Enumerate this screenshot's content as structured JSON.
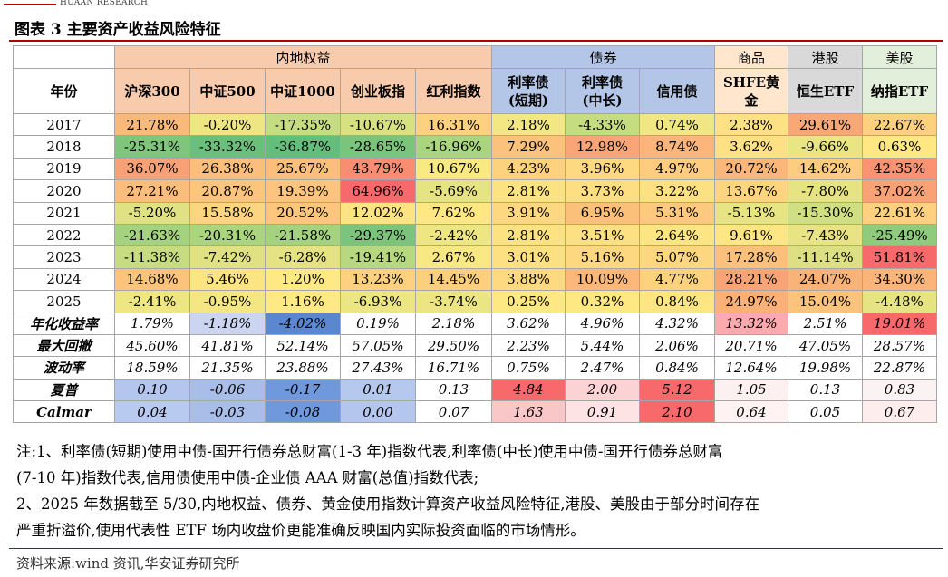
{
  "brand": "HUAAN RESEARCH",
  "title": "图表 3  主要资产收益风险特征",
  "groups": {
    "equity": "内地权益",
    "bonds": "债券",
    "commodity": "商品",
    "hk": "港股",
    "us": "美股"
  },
  "headers": {
    "year": "年份",
    "hs300": "沪深300",
    "zz500": "中证500",
    "zz1000": "中证1000",
    "cyb": "创业板指",
    "hl": "红利指数",
    "rate_short_1": "利率债",
    "rate_short_2": "(短期)",
    "rate_long_1": "利率债",
    "rate_long_2": "(中长)",
    "credit": "信用债",
    "gold_1": "SHFE黄",
    "gold_2": "金",
    "hstech": "恒生ETF",
    "ndx": "纳指ETF"
  },
  "years": [
    {
      "year": "2017",
      "v": [
        "21.78%",
        "-0.20%",
        "-17.35%",
        "-10.67%",
        "16.31%",
        "2.18%",
        "-4.33%",
        "0.74%",
        "2.38%",
        "29.61%",
        "22.67%"
      ]
    },
    {
      "year": "2018",
      "v": [
        "-25.31%",
        "-33.32%",
        "-36.87%",
        "-28.65%",
        "-16.96%",
        "7.29%",
        "12.98%",
        "8.74%",
        "3.62%",
        "-9.66%",
        "0.63%"
      ]
    },
    {
      "year": "2019",
      "v": [
        "36.07%",
        "26.38%",
        "25.67%",
        "43.79%",
        "10.67%",
        "4.23%",
        "3.96%",
        "4.97%",
        "20.72%",
        "14.62%",
        "42.35%"
      ]
    },
    {
      "year": "2020",
      "v": [
        "27.21%",
        "20.87%",
        "19.39%",
        "64.96%",
        "-5.69%",
        "2.81%",
        "3.73%",
        "3.22%",
        "13.67%",
        "-7.80%",
        "37.02%"
      ]
    },
    {
      "year": "2021",
      "v": [
        "-5.20%",
        "15.58%",
        "20.52%",
        "12.02%",
        "7.62%",
        "3.91%",
        "6.95%",
        "5.31%",
        "-5.13%",
        "-15.30%",
        "22.61%"
      ]
    },
    {
      "year": "2022",
      "v": [
        "-21.63%",
        "-20.31%",
        "-21.58%",
        "-29.37%",
        "-2.42%",
        "2.81%",
        "3.51%",
        "2.64%",
        "9.61%",
        "-7.43%",
        "-25.49%"
      ]
    },
    {
      "year": "2023",
      "v": [
        "-11.38%",
        "-7.42%",
        "-6.28%",
        "-19.41%",
        "2.67%",
        "3.01%",
        "5.16%",
        "5.07%",
        "17.28%",
        "-11.14%",
        "51.81%"
      ]
    },
    {
      "year": "2024",
      "v": [
        "14.68%",
        "5.46%",
        "1.20%",
        "13.23%",
        "14.45%",
        "3.88%",
        "10.09%",
        "4.77%",
        "28.21%",
        "24.07%",
        "34.30%"
      ]
    },
    {
      "year": "2025",
      "v": [
        "-2.41%",
        "-0.95%",
        "1.16%",
        "-6.93%",
        "-3.74%",
        "0.25%",
        "0.32%",
        "0.84%",
        "24.97%",
        "15.04%",
        "-4.48%"
      ]
    }
  ],
  "stats": [
    {
      "label": "年化收益率",
      "v": [
        "1.79%",
        "-1.18%",
        "-4.02%",
        "0.19%",
        "2.18%",
        "3.62%",
        "4.96%",
        "4.32%",
        "13.32%",
        "2.51%",
        "19.01%"
      ]
    },
    {
      "label": "最大回撤",
      "v": [
        "45.60%",
        "41.81%",
        "52.14%",
        "57.05%",
        "29.50%",
        "2.23%",
        "5.44%",
        "2.06%",
        "20.71%",
        "47.05%",
        "28.57%"
      ]
    },
    {
      "label": "波动率",
      "v": [
        "18.59%",
        "21.35%",
        "23.88%",
        "27.43%",
        "16.71%",
        "0.75%",
        "2.47%",
        "0.84%",
        "12.64%",
        "19.98%",
        "22.87%"
      ]
    },
    {
      "label": "夏普",
      "v": [
        "0.10",
        "-0.06",
        "-0.17",
        "0.01",
        "0.13",
        "4.84",
        "2.00",
        "5.12",
        "1.05",
        "0.13",
        "0.83"
      ]
    },
    {
      "label": "Calmar",
      "v": [
        "0.04",
        "-0.03",
        "-0.08",
        "0.00",
        "0.07",
        "1.63",
        "0.91",
        "2.10",
        "0.64",
        "0.05",
        "0.67"
      ]
    }
  ],
  "year_colors": [
    [
      "#f9b97a",
      "#eee683",
      "#c5dc80",
      "#d6e182",
      "#fdd17f",
      "#f3e783",
      "#c6dc81",
      "#f0e683",
      "#fee182",
      "#f8a877",
      "#fdd07e"
    ],
    [
      "#7fc57b",
      "#6cbf7b",
      "#63be7b",
      "#7bc47b",
      "#abd47e",
      "#fbc27c",
      "#f9a577",
      "#fbb479",
      "#fee182",
      "#eae583",
      "#ffe884"
    ],
    [
      "#f9a176",
      "#fbbe7c",
      "#fbbe7b",
      "#f98d71",
      "#f9e983",
      "#fdd27f",
      "#fdd981",
      "#fdcc7e",
      "#fbb779",
      "#fdcc7e",
      "#f99372"
    ],
    [
      "#fbbd7b",
      "#fcc57d",
      "#fcc47d",
      "#f8696b",
      "#e5e382",
      "#fde282",
      "#fdde82",
      "#fde082",
      "#fed57f",
      "#e6e383",
      "#f9a276"
    ],
    [
      "#dfe183",
      "#fdd580",
      "#fdc67d",
      "#fee383",
      "#ffe884",
      "#fed880",
      "#fbc17b",
      "#fcc97e",
      "#e6e483",
      "#cfdf82",
      "#fdd17f"
    ],
    [
      "#a4d27e",
      "#abd47e",
      "#a4d27e",
      "#7cc47b",
      "#eee683",
      "#fde282",
      "#fde082",
      "#fee583",
      "#fee683",
      "#e9e483",
      "#8fcb7d"
    ],
    [
      "#c7dc81",
      "#dfe183",
      "#e4e283",
      "#b7d880",
      "#f8e883",
      "#fde082",
      "#fdd880",
      "#fdd77f",
      "#fbc07c",
      "#dce083",
      "#f8696b"
    ],
    [
      "#fcc37d",
      "#fde482",
      "#ffe984",
      "#fdd17f",
      "#fccf7f",
      "#fdda81",
      "#fbb87a",
      "#fdd27f",
      "#f9a476",
      "#f9b379",
      "#fbb479"
    ],
    [
      "#eee683",
      "#f4e783",
      "#ffe984",
      "#ebe583",
      "#ece583",
      "#fee884",
      "#fee884",
      "#fee583",
      "#fbb077",
      "#fcc37d",
      "#e6e383"
    ]
  ],
  "stat_colors": [
    [
      "#ffffff",
      "#cbd5f2",
      "#5b86d0",
      "#fefefe",
      "#ffffff",
      "#ffffff",
      "#ffffff",
      "#ffffff",
      "#fbaaae",
      "#ffffff",
      "#f8696b"
    ],
    [
      "#ffffff",
      "#ffffff",
      "#ffffff",
      "#ffffff",
      "#ffffff",
      "#ffffff",
      "#ffffff",
      "#ffffff",
      "#ffffff",
      "#ffffff",
      "#ffffff"
    ],
    [
      "#ffffff",
      "#ffffff",
      "#ffffff",
      "#ffffff",
      "#ffffff",
      "#ffffff",
      "#ffffff",
      "#ffffff",
      "#ffffff",
      "#ffffff",
      "#ffffff"
    ],
    [
      "#b4c6ee",
      "#a9bde9",
      "#7098dc",
      "#b5c8ee",
      "#ffffff",
      "#f8696b",
      "#fcd3d4",
      "#f8696b",
      "#fdf0f0",
      "#ffffff",
      "#fbf3f3"
    ],
    [
      "#b8caef",
      "#a9bde9",
      "#7098dc",
      "#b4c6ee",
      "#ffffff",
      "#fac7c8",
      "#fde3e4",
      "#f8696b",
      "#fef2f2",
      "#ffffff",
      "#fdeded"
    ]
  ],
  "header_colors": {
    "equity": "#f8cbad",
    "bonds": "#b4c6e7",
    "commodity": "#ffe6cc",
    "hk": "#d9d9d9",
    "us": "#e2efda"
  },
  "notes": [
    "注:1、利率债(短期)使用中债-国开行债券总财富(1-3 年)指数代表,利率债(中长)使用中债-国开行债券总财富",
    "(7-10 年)指数代表,信用债使用中债-企业债 AAA 财富(总值)指数代表;",
    "2、2025 年数据截至 5/30,内地权益、债券、黄金使用指数计算资产收益风险特征,港股、美股由于部分时间存在",
    "严重折溢价,使用代表性 ETF 场内收盘价更能准确反映国内实际投资面临的市场情形。"
  ],
  "source": "资料来源:wind 资讯,华安证券研究所"
}
